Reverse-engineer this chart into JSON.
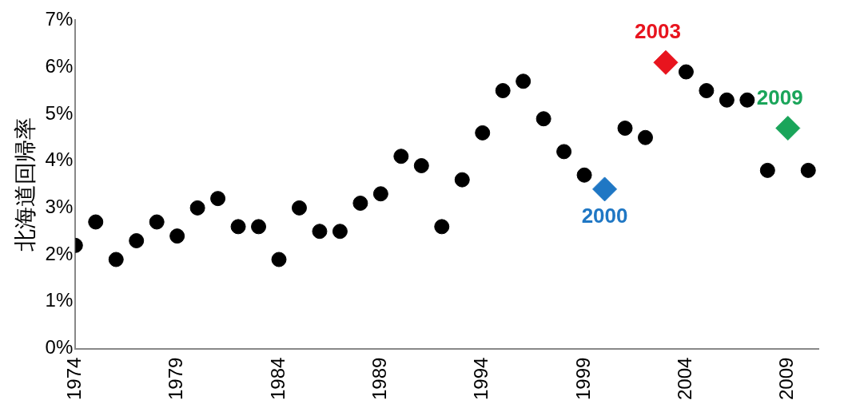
{
  "chart_data": {
    "type": "scatter",
    "ylabel": "北海道回帰率",
    "marker": "circle",
    "grid": false,
    "legend": false,
    "xlim": [
      1974,
      2010.5
    ],
    "xticks": [
      1974,
      1979,
      1984,
      1989,
      1994,
      1999,
      2004,
      2009
    ],
    "ylim": [
      0,
      7
    ],
    "yticks": [
      {
        "value": 0,
        "label": "0%"
      },
      {
        "value": 1,
        "label": "1%"
      },
      {
        "value": 2,
        "label": "2%"
      },
      {
        "value": 3,
        "label": "3%"
      },
      {
        "value": 4,
        "label": "4%"
      },
      {
        "value": 5,
        "label": "5%"
      },
      {
        "value": 6,
        "label": "6%"
      },
      {
        "value": 7,
        "label": "7%"
      }
    ],
    "series": [
      {
        "color": "#000000",
        "x": [
          1974,
          1975,
          1976,
          1977,
          1978,
          1979,
          1980,
          1981,
          1982,
          1983,
          1984,
          1985,
          1986,
          1987,
          1988,
          1989,
          1990,
          1991,
          1992,
          1993,
          1994,
          1995,
          1996,
          1997,
          1998,
          1999,
          2001,
          2002,
          2004,
          2005,
          2006,
          2007,
          2008,
          2010
        ],
        "values": [
          2.2,
          2.7,
          1.9,
          2.3,
          2.7,
          2.4,
          3.0,
          3.2,
          2.6,
          2.6,
          1.9,
          3.0,
          2.5,
          2.5,
          3.1,
          3.3,
          4.1,
          3.9,
          2.6,
          3.6,
          4.6,
          5.5,
          5.7,
          4.9,
          4.2,
          3.7,
          4.7,
          4.5,
          5.9,
          5.5,
          5.3,
          5.3,
          3.8,
          3.8
        ]
      },
      {
        "name": "2000",
        "color": "#1f77c4",
        "marker": "diamond",
        "x": [
          2000
        ],
        "values": [
          3.4
        ]
      },
      {
        "name": "2003",
        "color": "#e8141e",
        "marker": "diamond",
        "x": [
          2003
        ],
        "values": [
          6.1
        ]
      },
      {
        "name": "2009",
        "color": "#1aa55a",
        "marker": "diamond",
        "x": [
          2009
        ],
        "values": [
          4.7
        ]
      }
    ]
  }
}
